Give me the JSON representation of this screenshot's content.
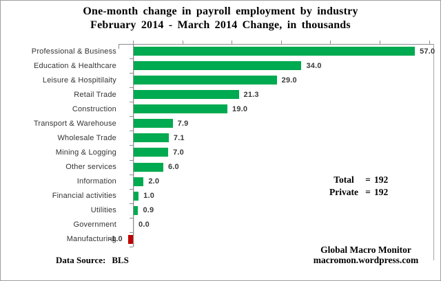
{
  "title": {
    "line1": "One-month change in payroll employment by industry",
    "line2": "February 2014 - March 2014 Change, in thousands"
  },
  "chart_data": {
    "type": "bar",
    "orientation": "horizontal",
    "title": "One-month change in payroll employment by industry — February 2014 - March 2014 Change, in thousands",
    "xlabel": "",
    "ylabel": "",
    "categories": [
      "Professional & Business",
      "Education & Healthcare",
      "Leisure & Hospitilaity",
      "Retail Trade",
      "Construction",
      "Transport & Warehouse",
      "Wholesale Trade",
      "Mining & Logging",
      "Other services",
      "Information",
      "Financial activities",
      "Utilities",
      "Government",
      "Manufacturing"
    ],
    "values": [
      57.0,
      34.0,
      29.0,
      21.3,
      19.0,
      7.9,
      7.1,
      7.0,
      6.0,
      2.0,
      1.0,
      0.9,
      0.0,
      -1.0
    ],
    "value_labels": [
      "57.0",
      "34.0",
      "29.0",
      "21.3",
      "19.0",
      "7.9",
      "7.1",
      "7.0",
      "6.0",
      "2.0",
      "1.0",
      "0.9",
      "0.0",
      "-1.0"
    ],
    "xlim": [
      -3,
      61
    ],
    "tick_interval": 10,
    "gridlines": false,
    "value_axis_position": "top",
    "bar_color_positive": "#00AA50",
    "bar_color_negative": "#C00000",
    "axis_color": "#8c8c8c",
    "annotations": [
      {
        "label": "Total",
        "eq": "=",
        "value": "192"
      },
      {
        "label": "Private",
        "eq": "=",
        "value": "192"
      }
    ]
  },
  "footer": {
    "source_label": "Data Source:",
    "source_value": "BLS",
    "brand_line1": "Global Macro Monitor",
    "brand_line2": "macromon.wordpress.com"
  }
}
